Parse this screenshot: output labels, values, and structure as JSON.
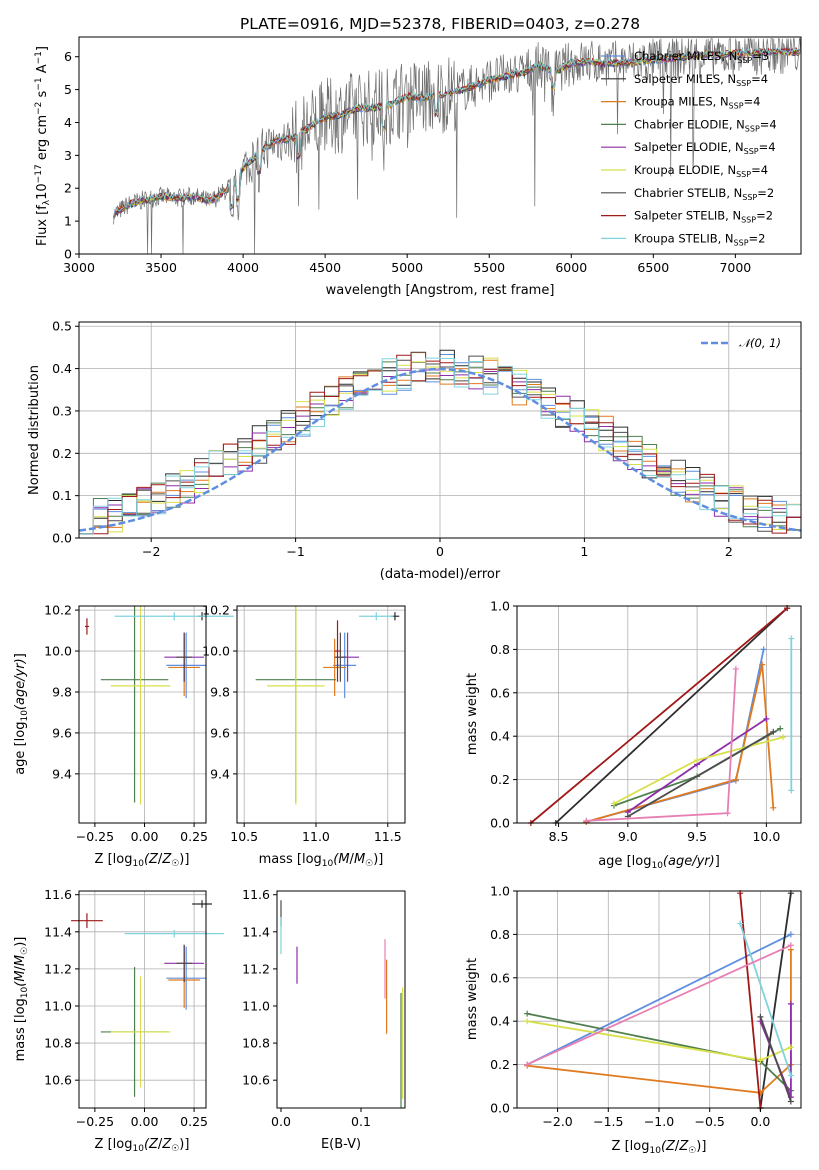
{
  "chart_data": [
    {
      "type": "line",
      "title": "PLATE=0916, MJD=52378, FIBERID=0403, z=0.278",
      "xlabel": "wavelength [Angstrom, rest frame]",
      "ylabel": "Flux [f_λ 10^-17 erg cm^-2 s^-1 A^-1]",
      "xlim": [
        3000,
        7400
      ],
      "ylim": [
        0,
        6.6
      ],
      "xticks": [
        3000,
        3500,
        4000,
        4500,
        5000,
        5500,
        6000,
        6500,
        7000
      ],
      "yticks": [
        0,
        1,
        2,
        3,
        4,
        5,
        6
      ],
      "legend_position": "upper-right",
      "grid": false,
      "continuum": {
        "x": [
          3210,
          3300,
          3400,
          3500,
          3600,
          3700,
          3800,
          3900,
          4000,
          4100,
          4200,
          4300,
          4400,
          4500,
          4600,
          4700,
          4800,
          4900,
          5000,
          5100,
          5200,
          5300,
          5400,
          5500,
          5600,
          5700,
          5800,
          5900,
          6000,
          6100,
          6200,
          6300,
          6400,
          6500,
          6600,
          6700,
          6800,
          6900,
          7000,
          7100,
          7200,
          7300,
          7400
        ],
        "y": [
          1.2,
          1.5,
          1.65,
          1.75,
          1.7,
          1.75,
          1.6,
          1.95,
          2.6,
          3.1,
          3.45,
          3.5,
          3.85,
          4.15,
          4.25,
          4.45,
          4.45,
          4.55,
          4.8,
          4.75,
          4.85,
          4.95,
          5.1,
          5.3,
          5.4,
          5.5,
          5.75,
          5.55,
          5.8,
          5.85,
          5.8,
          5.8,
          5.85,
          5.9,
          5.95,
          6.0,
          6.05,
          6.05,
          6.1,
          6.1,
          6.15,
          6.15,
          6.15
        ]
      },
      "series": [
        {
          "name": "Chabrier MILES, N_SSP=3",
          "color": "#5f8ee0"
        },
        {
          "name": "Salpeter MILES, N_SSP=4",
          "color": "#2d2d2d"
        },
        {
          "name": "Kroupa MILES, N_SSP=4",
          "color": "#e07a1f"
        },
        {
          "name": "Chabrier ELODIE, N_SSP=4",
          "color": "#4f7f4f"
        },
        {
          "name": "Salpeter ELODIE, N_SSP=4",
          "color": "#8e2ea8"
        },
        {
          "name": "Kroupa ELODIE, N_SSP=4",
          "color": "#d7e04a"
        },
        {
          "name": "Chabrier STELIB, N_SSP=2",
          "color": "#4d4d4d"
        },
        {
          "name": "Salpeter STELIB, N_SSP=2",
          "color": "#a01818"
        },
        {
          "name": "Kroupa STELIB, N_SSP=2",
          "color": "#7fd3dd"
        }
      ]
    },
    {
      "type": "line",
      "xlabel": "(data-model)/error",
      "ylabel": "Normed distribution",
      "xlim": [
        -2.5,
        2.5
      ],
      "ylim": [
        0,
        0.51
      ],
      "xticks": [
        -2,
        -1,
        0,
        1,
        2
      ],
      "yticks": [
        0.0,
        0.1,
        0.2,
        0.3,
        0.4,
        0.5
      ],
      "grid": true,
      "legend_position": "upper-right",
      "reference": {
        "name": "𝒩(0, 1)",
        "color": "#5f8ee0",
        "mean": 0,
        "sigma": 1
      },
      "hist_bins": [
        -2.5,
        2.5,
        50
      ],
      "hist_colors": [
        "#5f8ee0",
        "#2d2d2d",
        "#e07a1f",
        "#4f7f4f",
        "#8e2ea8",
        "#d7e04a",
        "#4d4d4d",
        "#a01818",
        "#7fd3dd"
      ]
    },
    {
      "type": "scatter",
      "xlabel": "Z [log10(Z/Z☉)]",
      "ylabel": "age  [log10(age/yr)]",
      "xlim": [
        -0.33,
        0.31
      ],
      "ylim": [
        9.16,
        10.22
      ],
      "xticks": [
        -0.25,
        0.0,
        0.25
      ],
      "yticks": [
        9.4,
        9.6,
        9.8,
        10.0,
        10.2
      ],
      "grid": true,
      "points": [
        {
          "x": 0.21,
          "y": 9.93,
          "xerr": 0.1,
          "yerr": 0.16,
          "color": "#5f8ee0"
        },
        {
          "x": 0.29,
          "y": 10.17,
          "xerr": 0.02,
          "yerr": 0.02,
          "color": "#2d2d2d"
        },
        {
          "x": 0.2,
          "y": 9.92,
          "xerr": 0.08,
          "yerr": 0.14,
          "color": "#e07a1f"
        },
        {
          "x": -0.05,
          "y": 9.86,
          "xerr": 0.17,
          "yerr": 0.6,
          "color": "#4f7f4f"
        },
        {
          "x": 0.2,
          "y": 9.97,
          "xerr": 0.1,
          "yerr": 0.12,
          "color": "#8e2ea8"
        },
        {
          "x": -0.02,
          "y": 9.83,
          "xerr": 0.15,
          "yerr": 0.58,
          "color": "#d7e04a"
        },
        {
          "x": 0.2,
          "y": 9.97,
          "xerr": 0.04,
          "yerr": 0.12,
          "color": "#4d4d4d"
        },
        {
          "x": -0.29,
          "y": 10.12,
          "xerr": 0.01,
          "yerr": 0.04,
          "color": "#a01818"
        },
        {
          "x": 0.15,
          "y": 10.17,
          "xerr": 0.3,
          "yerr": 0.02,
          "color": "#7fd3dd"
        }
      ]
    },
    {
      "type": "scatter",
      "xlabel": "mass [log10(M/M☉)]",
      "xlim": [
        10.45,
        11.62
      ],
      "ylim": [
        9.16,
        10.22
      ],
      "xticks": [
        10.5,
        11.0,
        11.5
      ],
      "yticks": [
        9.4,
        9.6,
        9.8,
        10.0,
        10.2
      ],
      "grid": true,
      "points": [
        {
          "x": 11.2,
          "y": 9.93,
          "xerr": 0.08,
          "yerr": 0.16,
          "color": "#5f8ee0"
        },
        {
          "x": 11.55,
          "y": 10.17,
          "xerr": 0.03,
          "yerr": 0.02,
          "color": "#2d2d2d"
        },
        {
          "x": 11.13,
          "y": 9.92,
          "xerr": 0.08,
          "yerr": 0.14,
          "color": "#e07a1f"
        },
        {
          "x": 10.86,
          "y": 9.86,
          "xerr": 0.28,
          "yerr": 0.6,
          "color": "#4f7f4f"
        },
        {
          "x": 11.22,
          "y": 9.97,
          "xerr": 0.08,
          "yerr": 0.12,
          "color": "#8e2ea8"
        },
        {
          "x": 10.86,
          "y": 9.83,
          "xerr": 0.2,
          "yerr": 0.58,
          "color": "#d7e04a"
        },
        {
          "x": 11.17,
          "y": 9.97,
          "xerr": 0.04,
          "yerr": 0.12,
          "color": "#4d4d4d"
        },
        {
          "x": 11.15,
          "y": 10.0,
          "xerr": 0.02,
          "yerr": 0.15,
          "color": "#a01818"
        },
        {
          "x": 11.42,
          "y": 10.17,
          "xerr": 0.12,
          "yerr": 0.02,
          "color": "#7fd3dd"
        }
      ]
    },
    {
      "type": "line",
      "xlabel": "age  [log10(age/yr)]",
      "ylabel": "mass weight",
      "xlim": [
        8.2,
        10.25
      ],
      "ylim": [
        0,
        1.0
      ],
      "xticks": [
        8.5,
        9.0,
        9.5,
        10.0
      ],
      "yticks": [
        0.0,
        0.2,
        0.4,
        0.6,
        0.8,
        1.0
      ],
      "grid": true,
      "series": [
        {
          "color": "#5f8ee0",
          "x": [
            8.7,
            9.78,
            9.98
          ],
          "y": [
            0.005,
            0.195,
            0.8
          ]
        },
        {
          "color": "#2d2d2d",
          "x": [
            8.48,
            10.15
          ],
          "y": [
            0.0,
            0.99
          ]
        },
        {
          "color": "#e07a1f",
          "x": [
            8.7,
            9.78,
            9.97,
            10.05
          ],
          "y": [
            0.005,
            0.2,
            0.73,
            0.07
          ]
        },
        {
          "color": "#4f7f4f",
          "x": [
            8.9,
            9.5,
            10.1
          ],
          "y": [
            0.08,
            0.215,
            0.435
          ]
        },
        {
          "color": "#8e2ea8",
          "x": [
            9.0,
            9.5,
            10.0
          ],
          "y": [
            0.05,
            0.27,
            0.48
          ]
        },
        {
          "color": "#d7e04a",
          "x": [
            8.9,
            9.5,
            10.12
          ],
          "y": [
            0.09,
            0.29,
            0.395
          ]
        },
        {
          "color": "#4d4d4d",
          "x": [
            9.0,
            10.05
          ],
          "y": [
            0.03,
            0.42
          ]
        },
        {
          "color": "#a01818",
          "x": [
            8.3,
            10.15
          ],
          "y": [
            0.0,
            0.99
          ]
        },
        {
          "color": "#7fd3dd",
          "x": [
            10.18,
            10.18
          ],
          "y": [
            0.15,
            0.85
          ]
        },
        {
          "color": "#e87fb4",
          "x": [
            8.7,
            9.72,
            9.78
          ],
          "y": [
            0.01,
            0.045,
            0.71
          ]
        }
      ]
    },
    {
      "type": "scatter",
      "xlabel": "Z [log10(Z/Z☉)]",
      "ylabel": "mass [log10(M/M☉)]",
      "xlim": [
        -0.33,
        0.31
      ],
      "ylim": [
        10.45,
        11.62
      ],
      "xticks": [
        -0.25,
        0.0,
        0.25
      ],
      "yticks": [
        10.6,
        10.8,
        11.0,
        11.2,
        11.4,
        11.6
      ],
      "grid": true,
      "points": [
        {
          "x": 0.21,
          "y": 11.15,
          "xerr": 0.1,
          "yerr": 0.17,
          "color": "#5f8ee0"
        },
        {
          "x": 0.29,
          "y": 11.55,
          "xerr": 0.05,
          "yerr": 0.02,
          "color": "#2d2d2d"
        },
        {
          "x": 0.2,
          "y": 11.14,
          "xerr": 0.08,
          "yerr": 0.15,
          "color": "#e07a1f"
        },
        {
          "x": -0.05,
          "y": 10.86,
          "xerr": 0.17,
          "yerr": 0.35,
          "color": "#4f7f4f"
        },
        {
          "x": 0.2,
          "y": 11.23,
          "xerr": 0.1,
          "yerr": 0.1,
          "color": "#8e2ea8"
        },
        {
          "x": -0.02,
          "y": 10.86,
          "xerr": 0.15,
          "yerr": 0.3,
          "color": "#d7e04a"
        },
        {
          "x": 0.2,
          "y": 11.23,
          "xerr": 0.04,
          "yerr": 0.1,
          "color": "#4d4d4d"
        },
        {
          "x": -0.29,
          "y": 11.46,
          "xerr": 0.08,
          "yerr": 0.04,
          "color": "#a01818"
        },
        {
          "x": 0.15,
          "y": 11.39,
          "xerr": 0.25,
          "yerr": 0.02,
          "color": "#7fd3dd"
        }
      ]
    },
    {
      "type": "scatter",
      "xlabel": "E(B-V)",
      "xlim": [
        -0.005,
        0.155
      ],
      "ylim": [
        10.45,
        11.62
      ],
      "xticks": [
        0.0,
        0.1
      ],
      "yticks": [
        10.6,
        10.8,
        11.0,
        11.2,
        11.4,
        11.6
      ],
      "grid": false,
      "points": [
        {
          "x": 0.0,
          "y": 11.5,
          "yerr": 0.07,
          "color": "#4d4d4d"
        },
        {
          "x": 0.0,
          "y": 11.38,
          "yerr": 0.1,
          "color": "#7fd3dd"
        },
        {
          "x": 0.02,
          "y": 11.22,
          "yerr": 0.1,
          "color": "#8e2ea8"
        },
        {
          "x": 0.13,
          "y": 11.2,
          "yerr": 0.16,
          "color": "#e87fb4"
        },
        {
          "x": 0.132,
          "y": 11.05,
          "yerr": 0.2,
          "color": "#e07a1f"
        },
        {
          "x": 0.15,
          "y": 10.75,
          "yerr": 0.32,
          "color": "#4f7f4f"
        },
        {
          "x": 0.152,
          "y": 10.8,
          "yerr": 0.3,
          "color": "#d7e04a"
        }
      ]
    },
    {
      "type": "line",
      "xlabel": "Z [log10(Z/Z☉)]",
      "ylabel": "mass weight",
      "xlim": [
        -2.4,
        0.4
      ],
      "ylim": [
        0,
        1.0
      ],
      "xticks": [
        -2.0,
        -1.5,
        -1.0,
        -0.5,
        0.0
      ],
      "yticks": [
        0.0,
        0.2,
        0.4,
        0.6,
        0.8,
        1.0
      ],
      "grid": true,
      "series": [
        {
          "color": "#5f8ee0",
          "x": [
            -2.3,
            0.3
          ],
          "y": [
            0.2,
            0.8
          ]
        },
        {
          "color": "#2d2d2d",
          "x": [
            0.0,
            0.3
          ],
          "y": [
            0.0,
            0.99
          ]
        },
        {
          "color": "#e07a1f",
          "x": [
            -2.3,
            0.0,
            0.3,
            0.3
          ],
          "y": [
            0.195,
            0.07,
            0.2,
            0.73
          ]
        },
        {
          "color": "#4f7f4f",
          "x": [
            -2.3,
            0.0,
            0.3
          ],
          "y": [
            0.435,
            0.215,
            0.08
          ]
        },
        {
          "color": "#8e2ea8",
          "x": [
            0.0,
            0.3,
            0.3
          ],
          "y": [
            0.4,
            0.05,
            0.48
          ]
        },
        {
          "color": "#d7e04a",
          "x": [
            -2.3,
            0.0,
            0.3
          ],
          "y": [
            0.4,
            0.22,
            0.28
          ]
        },
        {
          "color": "#4d4d4d",
          "x": [
            0.0,
            0.3
          ],
          "y": [
            0.42,
            0.03
          ]
        },
        {
          "color": "#a01818",
          "x": [
            -0.2,
            0.0
          ],
          "y": [
            0.99,
            0.0
          ]
        },
        {
          "color": "#7fd3dd",
          "x": [
            -0.2,
            0.3
          ],
          "y": [
            0.85,
            0.15
          ]
        },
        {
          "color": "#e87fb4",
          "x": [
            -2.3,
            0.3
          ],
          "y": [
            0.2,
            0.75
          ]
        }
      ]
    }
  ]
}
